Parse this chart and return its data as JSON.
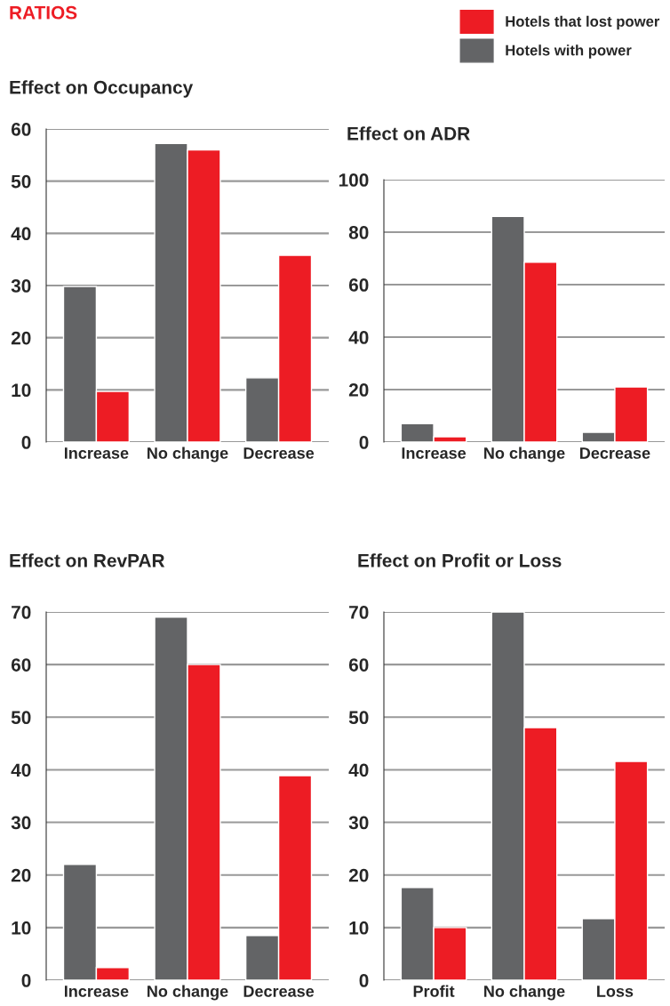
{
  "chart_data": [
    {
      "type": "bar",
      "title": "Effect on Occupancy",
      "annotations": [
        "RATIOS"
      ],
      "legend": "top right",
      "grid": "y",
      "categories": [
        "Increase",
        "No change",
        "Decrease"
      ],
      "ylim": [
        0,
        60
      ],
      "yticks": [
        0,
        10,
        20,
        30,
        40,
        50,
        60
      ],
      "series": [
        {
          "name": "Hotels with power",
          "color": "#636466",
          "values": [
            29.8,
            57.2,
            12.3
          ]
        },
        {
          "name": "Hotels that lost power",
          "color": "#ed1c24",
          "values": [
            9.7,
            56,
            35.8
          ]
        }
      ]
    },
    {
      "type": "bar",
      "title": "Effect on ADR",
      "grid": "y",
      "categories": [
        "Increase",
        "No change",
        "Decrease"
      ],
      "ylim": [
        0,
        100
      ],
      "yticks": [
        0,
        20,
        40,
        60,
        80,
        100
      ],
      "series": [
        {
          "color": "#636466",
          "values": [
            7,
            86,
            3.7
          ]
        },
        {
          "color": "#ed1c24",
          "values": [
            2,
            68.5,
            21
          ]
        }
      ]
    },
    {
      "type": "bar",
      "title": "Effect on RevPAR",
      "grid": "y",
      "categories": [
        "Increase",
        "No change",
        "Decrease"
      ],
      "ylim": [
        0,
        70
      ],
      "yticks": [
        0,
        10,
        20,
        30,
        40,
        50,
        60,
        70
      ],
      "series": [
        {
          "color": "#636466",
          "values": [
            22,
            69,
            8.5
          ]
        },
        {
          "color": "#ed1c24",
          "values": [
            2.4,
            60,
            38.9
          ]
        }
      ]
    },
    {
      "type": "bar",
      "title": "Effect on Profit or Loss",
      "grid": "y",
      "categories": [
        "Profit",
        "No change",
        "Loss"
      ],
      "ylim": [
        0,
        70
      ],
      "yticks": [
        0,
        10,
        20,
        30,
        40,
        50,
        60,
        70
      ],
      "series": [
        {
          "color": "#636466",
          "values": [
            17.6,
            70,
            11.7
          ]
        },
        {
          "color": "#ed1c24",
          "values": [
            10,
            48,
            41.6
          ]
        }
      ]
    }
  ]
}
